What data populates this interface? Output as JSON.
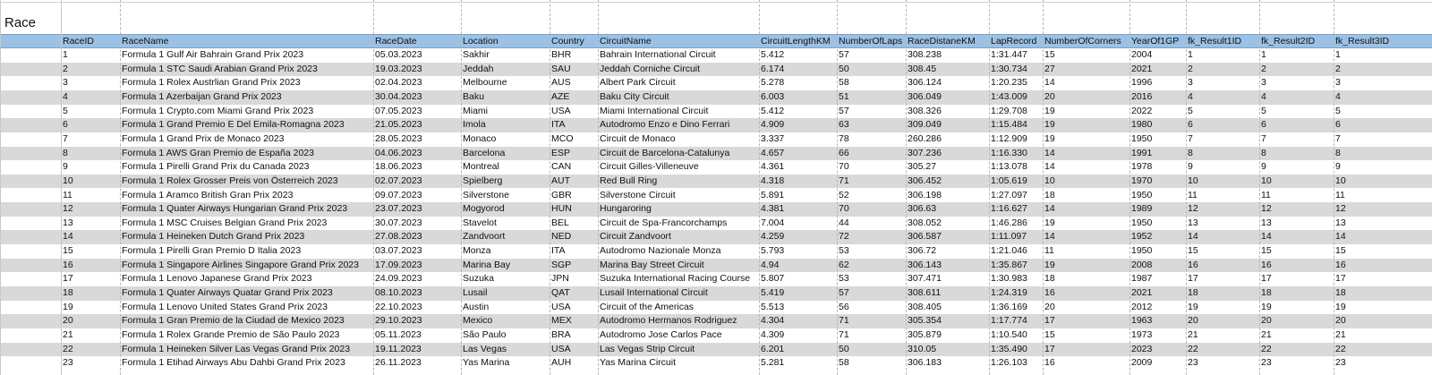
{
  "sheet": {
    "title": "Race",
    "columns": [
      "RaceID",
      "RaceName",
      "RaceDate",
      "Location",
      "Country",
      "CircuitName",
      "CircuitLengthKM",
      "NumberOfLaps",
      "RaceDistaneKM",
      "LapRecord",
      "NumberOfCorners",
      "YearOf1GP",
      "fk_Result1ID",
      "fk_Result2ID",
      "fk_Result3ID"
    ],
    "rows": [
      [
        "1",
        "Formula 1 Gulf Air Bahrain Grand Prix 2023",
        "05.03.2023",
        "Sakhir",
        "BHR",
        "Bahrain International Circuit",
        "5.412",
        "57",
        "308.238",
        "1:31.447",
        "15",
        "2004",
        "1",
        "1",
        "1"
      ],
      [
        "2",
        "Formula 1 STC Saudi Arabian Grand Prix 2023",
        "19.03.2023",
        "Jeddah",
        "SAU",
        "Jeddah Corniche Circuit",
        "6.174",
        "50",
        "308.45",
        "1:30.734",
        "27",
        "2021",
        "2",
        "2",
        "2"
      ],
      [
        "3",
        "Formula 1 Rolex Austrlian Grand Prix 2023",
        "02.04.2023",
        "Melbourne",
        "AUS",
        "Albert Park Circuit",
        "5.278",
        "58",
        "306.124",
        "1:20.235",
        "14",
        "1996",
        "3",
        "3",
        "3"
      ],
      [
        "4",
        "Formula 1 Azerbaijan Grand Prix 2023",
        "30.04.2023",
        "Baku",
        "AZE",
        "Baku City Circuit",
        "6.003",
        "51",
        "306.049",
        "1:43.009",
        "20",
        "2016",
        "4",
        "4",
        "4"
      ],
      [
        "5",
        "Formula 1 Crypto.com Miami Grand Prix 2023",
        "07.05.2023",
        "Miami",
        "USA",
        "Miami International Circuit",
        "5.412",
        "57",
        "308.326",
        "1:29.708",
        "19",
        "2022",
        "5",
        "5",
        "5"
      ],
      [
        "6",
        "Formula 1 Grand Premio E Del Emila-Romagna 2023",
        "21.05.2023",
        "Imola",
        "ITA",
        "Autodromo Enzo e Dino Ferrari",
        "4.909",
        "63",
        "309.049",
        "1:15.484",
        "19",
        "1980",
        "6",
        "6",
        "6"
      ],
      [
        "7",
        "Formula 1 Grand Prix de Monaco 2023",
        "28.05.2023",
        "Monaco",
        "MCO",
        "Circuit de Monaco",
        "3.337",
        "78",
        "260.286",
        "1:12.909",
        "19",
        "1950",
        "7",
        "7",
        "7"
      ],
      [
        "8",
        "Formula 1 AWS Gran Premio de España 2023",
        "04.06.2023",
        "Barcelona",
        "ESP",
        "Circuit de Barcelona-Catalunya",
        "4.657",
        "66",
        "307.236",
        "1:16.330",
        "14",
        "1991",
        "8",
        "8",
        "8"
      ],
      [
        "9",
        "Formula 1 Pirelli Grand Prix du Canada 2023",
        "18.06.2023",
        "Montreal",
        "CAN",
        "Circuit Gilles-Villeneuve",
        "4.361",
        "70",
        "305.27",
        "1:13.078",
        "14",
        "1978",
        "9",
        "9",
        "9"
      ],
      [
        "10",
        "Formula 1 Rolex Grosser Preis von Österreich 2023",
        "02.07.2023",
        "Spielberg",
        "AUT",
        "Red Bull Ring",
        "4.318",
        "71",
        "306.452",
        "1:05.619",
        "10",
        "1970",
        "10",
        "10",
        "10"
      ],
      [
        "11",
        "Formula 1 Aramco British Gran Prix 2023",
        "09.07.2023",
        "Silverstone",
        "GBR",
        "Silverstone Circuit",
        "5.891",
        "52",
        "306.198",
        "1:27.097",
        "18",
        "1950",
        "11",
        "11",
        "11"
      ],
      [
        "12",
        "Formula 1 Quater Airways Hungarian Grand Prix 2023",
        "23.07.2023",
        "Mogyorod",
        "HUN",
        "Hungaroring",
        "4.381",
        "70",
        "306.63",
        "1:16.627",
        "14",
        "1989",
        "12",
        "12",
        "12"
      ],
      [
        "13",
        "Formula 1 MSC Cruises Belgian Grand Prix 2023",
        "30.07.2023",
        "Stavelot",
        "BEL",
        "Circuit de Spa-Francorchamps",
        "7.004",
        "44",
        "308.052",
        "1:46.286",
        "19",
        "1950",
        "13",
        "13",
        "13"
      ],
      [
        "14",
        "Formula 1 Heineken Dutch Grand Prix 2023",
        "27.08.2023",
        "Zandvoort",
        "NED",
        "Circuit Zandvoort",
        "4.259",
        "72",
        "306.587",
        "1:11.097",
        "14",
        "1952",
        "14",
        "14",
        "14"
      ],
      [
        "15",
        "Formula 1 Pirelli Gran Premio D Italia 2023",
        "03.07.2023",
        "Monza",
        "ITA",
        "Autodromo Nazionale Monza",
        "5.793",
        "53",
        "306.72",
        "1:21.046",
        "11",
        "1950",
        "15",
        "15",
        "15"
      ],
      [
        "16",
        "Formula 1 Singapore Airlines Singapore Grand Prix 2023",
        "17.09.2023",
        "Marina Bay",
        "SGP",
        "Marina Bay Street Circuit",
        "4.94",
        "62",
        "306.143",
        "1:35.867",
        "19",
        "2008",
        "16",
        "16",
        "16"
      ],
      [
        "17",
        "Formula 1 Lenovo Japanese Grand Prix 2023",
        "24.09.2023",
        "Suzuka",
        "JPN",
        "Suzuka International Racing Course",
        "5.807",
        "53",
        "307.471",
        "1:30.983",
        "18",
        "1987",
        "17",
        "17",
        "17"
      ],
      [
        "18",
        "Formula 1 Quater Airways Quatar Grand Prix 2023",
        "08.10.2023",
        "Lusail",
        "QAT",
        "Lusail International Circuit",
        "5.419",
        "57",
        "308.611",
        "1:24.319",
        "16",
        "2021",
        "18",
        "18",
        "18"
      ],
      [
        "19",
        "Formula 1 Lenovo United States Grand Prix 2023",
        "22.10.2023",
        "Austin",
        "USA",
        "Circuit of the Americas",
        "5.513",
        "56",
        "308.405",
        "1:36.169",
        "20",
        "2012",
        "19",
        "19",
        "19"
      ],
      [
        "20",
        "Formula 1 Gran Premio de la Ciudad de Mexico 2023",
        "29.10.2023",
        "Mexico",
        "MEX",
        "Autodromo Hermanos Rodriguez",
        "4.304",
        "71",
        "305.354",
        "1:17.774",
        "17",
        "1963",
        "20",
        "20",
        "20"
      ],
      [
        "21",
        "Formula 1 Rolex Grande Premio de São Paulo 2023",
        "05.11.2023",
        "São Paulo",
        "BRA",
        "Autodromo Jose Carlos Pace",
        "4.309",
        "71",
        "305.879",
        "1:10.540",
        "15",
        "1973",
        "21",
        "21",
        "21"
      ],
      [
        "22",
        "Formula 1 Heineken Silver Las Vegas Grand Prix 2023",
        "19.11.2023",
        "Las Vegas",
        "USA",
        "Las Vegas Strip Circuit",
        "6.201",
        "50",
        "310.05",
        "1:35.490",
        "17",
        "2023",
        "22",
        "22",
        "22"
      ],
      [
        "23",
        "Formula 1 Etihad Airways Abu Dahbi Grand Prix 2023",
        "26.11.2023",
        "Yas Marina",
        "AUH",
        "Yas Marina Circuit",
        "5.281",
        "58",
        "306.183",
        "1:26.103",
        "16",
        "2009",
        "23",
        "23",
        "23"
      ]
    ]
  },
  "colors": {
    "header_fill": "#9bc2e6",
    "alt_row_fill": "#d9d9d9",
    "text": "#111111"
  }
}
